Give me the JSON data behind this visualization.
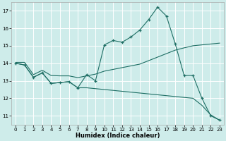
{
  "xlabel": "Humidex (Indice chaleur)",
  "background_color": "#ceecea",
  "grid_color": "#ffffff",
  "line_color": "#1e6e64",
  "xlim_min": -0.5,
  "xlim_max": 23.5,
  "ylim_min": 10.5,
  "ylim_max": 17.5,
  "xticks": [
    0,
    1,
    2,
    3,
    4,
    5,
    6,
    7,
    8,
    9,
    10,
    11,
    12,
    13,
    14,
    15,
    16,
    17,
    18,
    19,
    20,
    21,
    22,
    23
  ],
  "yticks": [
    11,
    12,
    13,
    14,
    15,
    16,
    17
  ],
  "series1_x": [
    0,
    1,
    2,
    3,
    4,
    5,
    6,
    7,
    8,
    9,
    10,
    11,
    12,
    13,
    14,
    15,
    16,
    17,
    18,
    19,
    20,
    21,
    22,
    23
  ],
  "series1_y": [
    14.0,
    13.9,
    13.2,
    13.45,
    12.85,
    12.9,
    12.95,
    12.6,
    13.35,
    13.0,
    15.05,
    15.3,
    15.2,
    15.5,
    15.9,
    16.5,
    17.2,
    16.7,
    15.1,
    13.3,
    13.3,
    12.0,
    11.0,
    10.75
  ],
  "series2_x": [
    0,
    1,
    2,
    3,
    4,
    5,
    6,
    7,
    8,
    9,
    10,
    11,
    12,
    13,
    14,
    15,
    16,
    17,
    18,
    19,
    20,
    21,
    22,
    23
  ],
  "series2_y": [
    14.05,
    14.05,
    13.35,
    13.6,
    13.3,
    13.28,
    13.28,
    13.18,
    13.28,
    13.38,
    13.55,
    13.65,
    13.75,
    13.85,
    13.95,
    14.15,
    14.35,
    14.55,
    14.75,
    14.88,
    15.0,
    15.05,
    15.1,
    15.15
  ],
  "series3_x": [
    0,
    1,
    2,
    3,
    4,
    5,
    6,
    7,
    8,
    9,
    10,
    11,
    12,
    13,
    14,
    15,
    16,
    17,
    18,
    19,
    20,
    21,
    22,
    23
  ],
  "series3_y": [
    14.0,
    13.9,
    13.2,
    13.45,
    12.85,
    12.9,
    12.95,
    12.6,
    12.6,
    12.55,
    12.5,
    12.45,
    12.4,
    12.35,
    12.3,
    12.25,
    12.2,
    12.15,
    12.1,
    12.05,
    12.0,
    11.6,
    11.05,
    10.75
  ]
}
